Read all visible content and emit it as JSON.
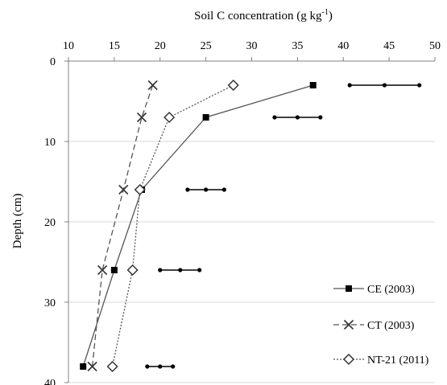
{
  "chart_data": {
    "type": "line",
    "xlabel_main": "Soil C concentration (g kg",
    "xlabel_sup": "-1",
    "xlabel_end": ")",
    "ylabel": "Depth (cm)",
    "xlim": [
      10,
      50
    ],
    "ylim": [
      0,
      40
    ],
    "y_inverted": true,
    "x_axis_position": "top",
    "x_ticks": [
      "10",
      "15",
      "20",
      "25",
      "30",
      "35",
      "40",
      "45",
      "50"
    ],
    "y_ticks": [
      "0",
      "10",
      "20",
      "30",
      "40"
    ],
    "grid": "horizontal",
    "legend_position": "bottom-right",
    "series": [
      {
        "name": "CE (2003)",
        "marker": "filled-square",
        "line": "solid",
        "color": "#555555",
        "points": [
          [
            36.7,
            3
          ],
          [
            25.0,
            7
          ],
          [
            18.0,
            16
          ],
          [
            15.0,
            26
          ],
          [
            11.6,
            38
          ]
        ]
      },
      {
        "name": "CT (2003)",
        "marker": "x",
        "line": "dashed",
        "color": "#555555",
        "points": [
          [
            19.2,
            3
          ],
          [
            18.0,
            7
          ],
          [
            16.0,
            16
          ],
          [
            13.7,
            26
          ],
          [
            12.6,
            38
          ]
        ]
      },
      {
        "name": "NT-21 (2011)",
        "marker": "open-diamond",
        "line": "dotted",
        "color": "#555555",
        "points": [
          [
            28.0,
            3
          ],
          [
            21.0,
            7
          ],
          [
            17.8,
            16
          ],
          [
            17.0,
            26
          ],
          [
            14.8,
            38
          ]
        ]
      }
    ],
    "error_bars": [
      {
        "y": 3,
        "low": 40.7,
        "mean": 44.5,
        "high": 48.3
      },
      {
        "y": 7,
        "low": 32.5,
        "mean": 35.0,
        "high": 37.5
      },
      {
        "y": 16,
        "low": 23.0,
        "mean": 25.0,
        "high": 27.0
      },
      {
        "y": 26,
        "low": 20.0,
        "mean": 22.2,
        "high": 24.3
      },
      {
        "y": 38,
        "low": 18.6,
        "mean": 20.0,
        "high": 21.4
      }
    ]
  }
}
